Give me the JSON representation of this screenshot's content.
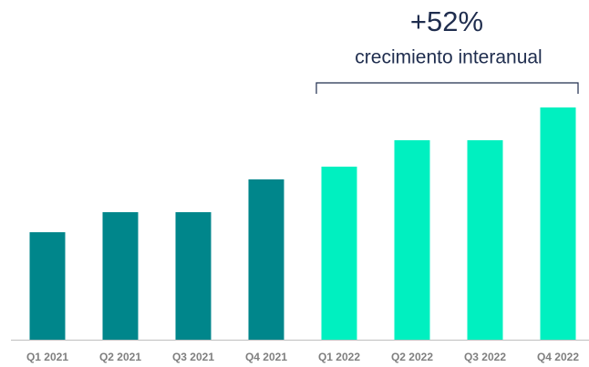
{
  "chart_data": {
    "type": "bar",
    "annotation_title": "+52%",
    "annotation_subtitle": "crecimiento interanual",
    "categories": [
      "Q1 2021",
      "Q2 2021",
      "Q3 2021",
      "Q4 2021",
      "Q1 2022",
      "Q2 2022",
      "Q3 2022",
      "Q4 2022"
    ],
    "values": [
      118,
      140,
      140,
      176,
      190,
      219,
      219,
      255
    ],
    "colors": [
      "#00868b",
      "#00868b",
      "#00868b",
      "#00868b",
      "#00f0c0",
      "#00f0c0",
      "#00f0c0",
      "#00f0c0"
    ],
    "ylim": [
      0,
      255
    ]
  }
}
